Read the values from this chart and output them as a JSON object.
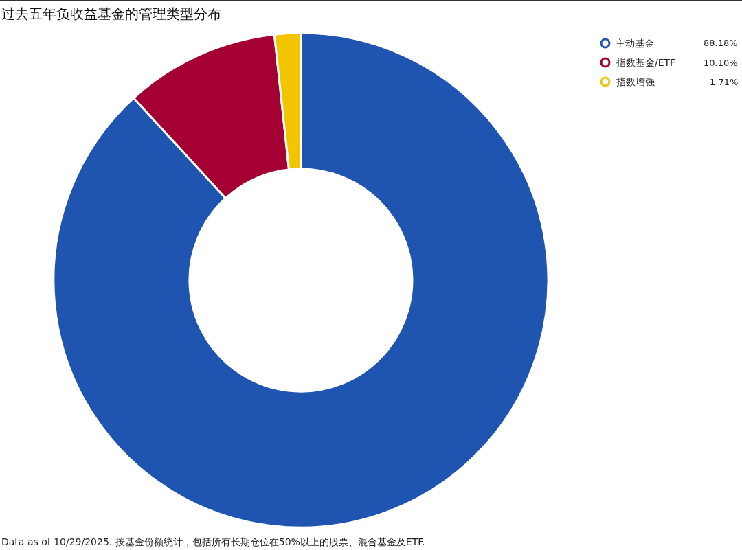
{
  "chart_data": {
    "type": "donut",
    "title": "过去五年负收益基金的管理类型分布",
    "categories": [
      "主动基金",
      "指数基金/ETF",
      "指数增强"
    ],
    "values": [
      88.18,
      10.1,
      1.71
    ],
    "value_labels": [
      "88.18%",
      "10.10%",
      "1.71%"
    ],
    "colors": [
      "#1f55b0",
      "#a50034",
      "#f2c500"
    ],
    "legend": "top right",
    "annotations": [
      "Data as of 10/29/2025. 按基金份额统计，包括所有长期仓位在50%以上的股票、混合基金及ETF."
    ]
  }
}
